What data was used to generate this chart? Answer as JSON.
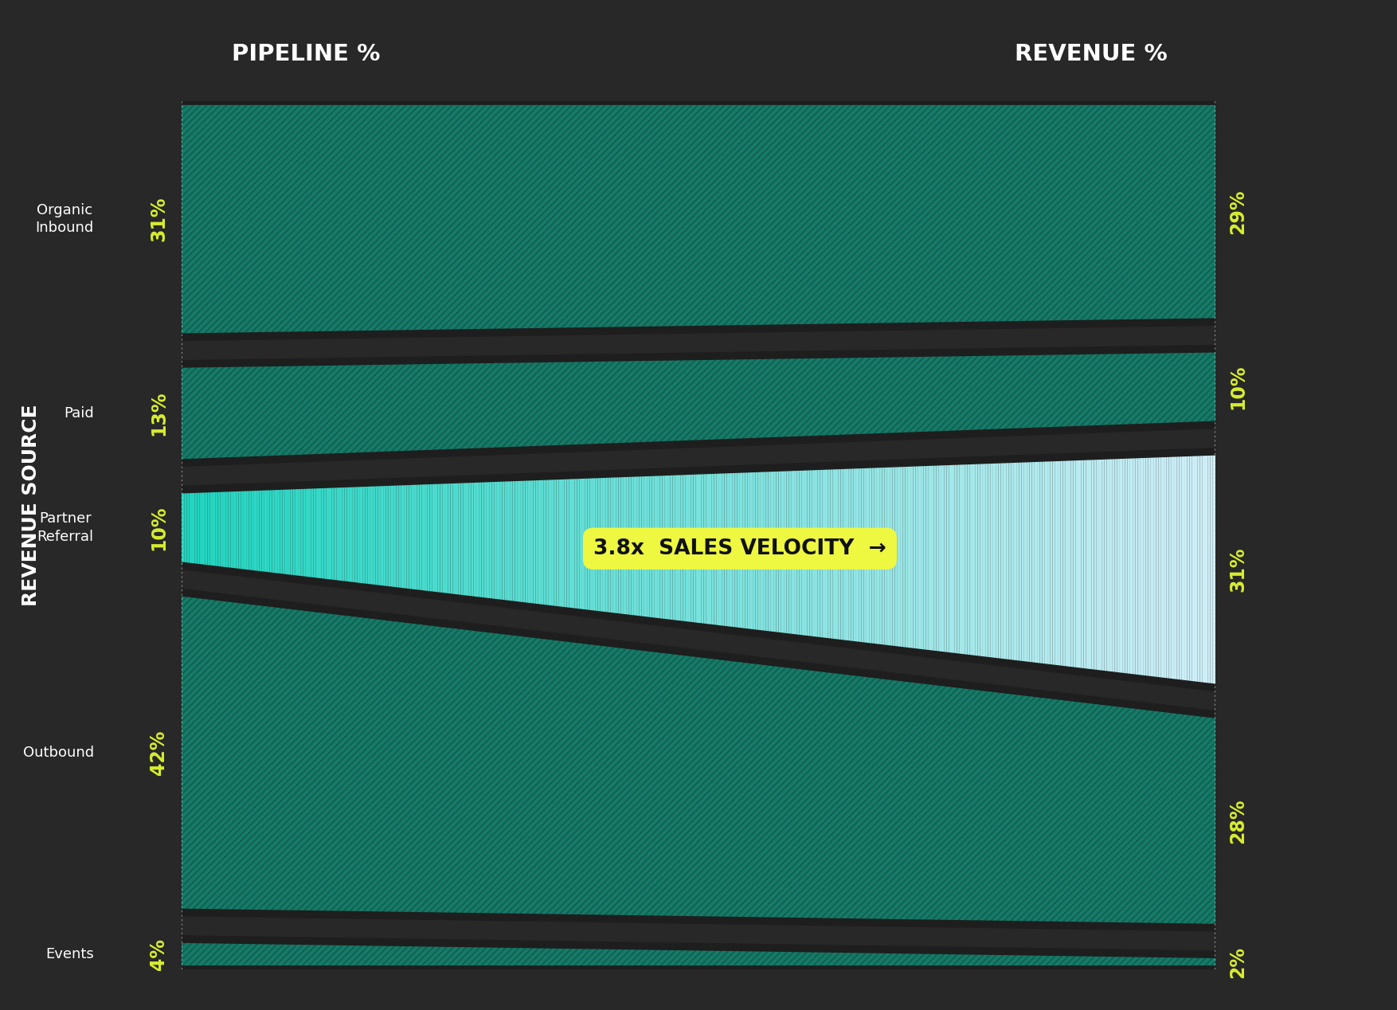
{
  "bg_color": "#282828",
  "title_left": "PIPELINE %",
  "title_right": "REVENUE %",
  "ylabel": "REVENUE SOURCE",
  "categories": [
    "Organic\nInbound",
    "Paid",
    "Partner\nReferral",
    "Outbound",
    "Events"
  ],
  "pipeline_pct": [
    31,
    13,
    10,
    42,
    4
  ],
  "revenue_pct": [
    29,
    10,
    31,
    28,
    2
  ],
  "band_color": "#177a68",
  "highlight_color_left": "#20d5c0",
  "highlight_color_right": "#d0eef8",
  "annotation_text": "3.8x  SALES VELOCITY  →",
  "annotation_bg": "#eef840",
  "annotation_text_color": "#111111",
  "label_color": "#d8ee30",
  "title_color": "#ffffff",
  "category_label_color": "#ffffff",
  "hatch_color": "#0e5e4e",
  "gap_color": "#1e1e1e",
  "highlight_idx": 2
}
